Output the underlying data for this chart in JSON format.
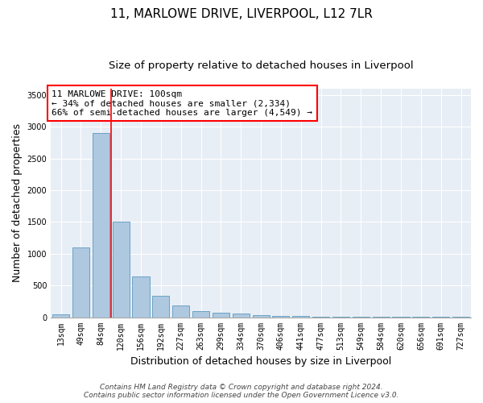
{
  "title_line1": "11, MARLOWE DRIVE, LIVERPOOL, L12 7LR",
  "title_line2": "Size of property relative to detached houses in Liverpool",
  "xlabel": "Distribution of detached houses by size in Liverpool",
  "ylabel": "Number of detached properties",
  "categories": [
    "13sqm",
    "49sqm",
    "84sqm",
    "120sqm",
    "156sqm",
    "192sqm",
    "227sqm",
    "263sqm",
    "299sqm",
    "334sqm",
    "370sqm",
    "406sqm",
    "441sqm",
    "477sqm",
    "513sqm",
    "549sqm",
    "584sqm",
    "620sqm",
    "656sqm",
    "691sqm",
    "727sqm"
  ],
  "values": [
    50,
    1100,
    2900,
    1500,
    640,
    340,
    190,
    95,
    75,
    55,
    35,
    25,
    15,
    10,
    8,
    5,
    3,
    2,
    1,
    1,
    1
  ],
  "bar_color": "#aec8e0",
  "bar_edge_color": "#5a9abf",
  "vline_x_index": 2,
  "vline_color": "red",
  "annotation_text": "11 MARLOWE DRIVE: 100sqm\n← 34% of detached houses are smaller (2,334)\n66% of semi-detached houses are larger (4,549) →",
  "annotation_box_color": "red",
  "ylim": [
    0,
    3600
  ],
  "yticks": [
    0,
    500,
    1000,
    1500,
    2000,
    2500,
    3000,
    3500
  ],
  "background_color": "#e8eef5",
  "footer_line1": "Contains HM Land Registry data © Crown copyright and database right 2024.",
  "footer_line2": "Contains public sector information licensed under the Open Government Licence v3.0.",
  "title_fontsize": 11,
  "subtitle_fontsize": 9.5,
  "axis_label_fontsize": 9,
  "tick_fontsize": 7,
  "annotation_fontsize": 8,
  "footer_fontsize": 6.5
}
